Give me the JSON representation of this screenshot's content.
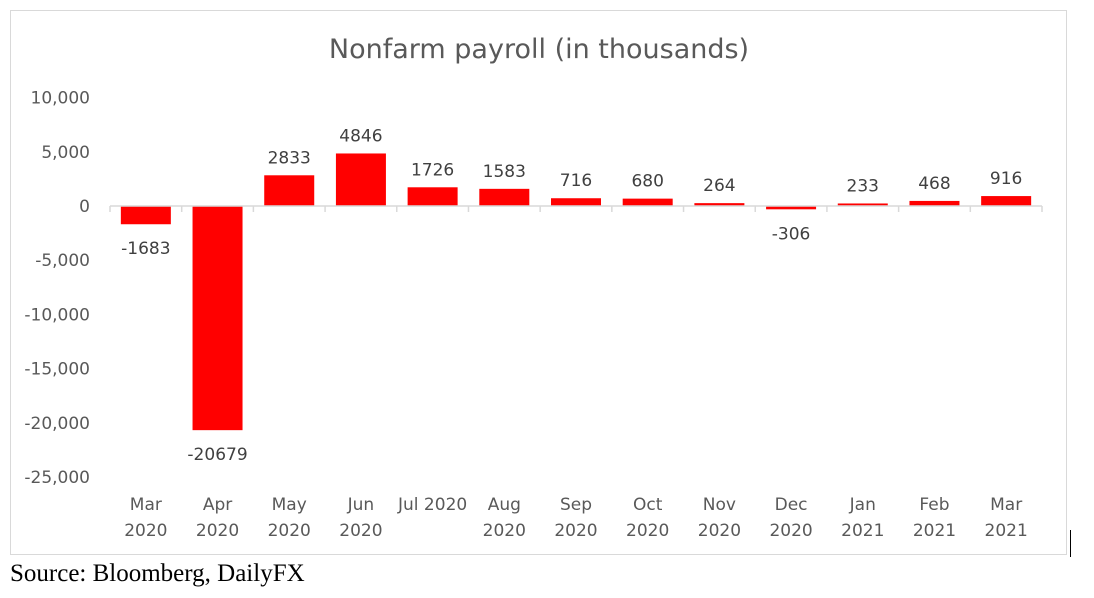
{
  "chart_data": {
    "type": "bar",
    "title": "Nonfarm payroll (in thousands)",
    "xlabel": "",
    "ylabel": "",
    "categories": [
      [
        "Mar",
        "2020"
      ],
      [
        "Apr",
        "2020"
      ],
      [
        "May",
        "2020"
      ],
      [
        "Jun",
        "2020"
      ],
      [
        "Jul 2020",
        ""
      ],
      [
        "Aug",
        "2020"
      ],
      [
        "Sep",
        "2020"
      ],
      [
        "Oct",
        "2020"
      ],
      [
        "Nov",
        "2020"
      ],
      [
        "Dec",
        "2020"
      ],
      [
        "Jan",
        "2021"
      ],
      [
        "Feb",
        "2021"
      ],
      [
        "Mar",
        "2021"
      ]
    ],
    "values": [
      -1683,
      -20679,
      2833,
      4846,
      1726,
      1583,
      716,
      680,
      264,
      -306,
      233,
      468,
      916
    ],
    "ylim": [
      -25000,
      10000
    ],
    "yticks": [
      10000,
      5000,
      0,
      -5000,
      -10000,
      -15000,
      -20000,
      -25000
    ],
    "ytick_labels": [
      "10,000",
      "5,000",
      "0",
      "-5,000",
      "-10,000",
      "-15,000",
      "-20,000",
      "-25,000"
    ],
    "grid": false,
    "bar_color": "#ff0000",
    "legend": "none"
  },
  "source": "Source: Bloomberg, DailyFX"
}
